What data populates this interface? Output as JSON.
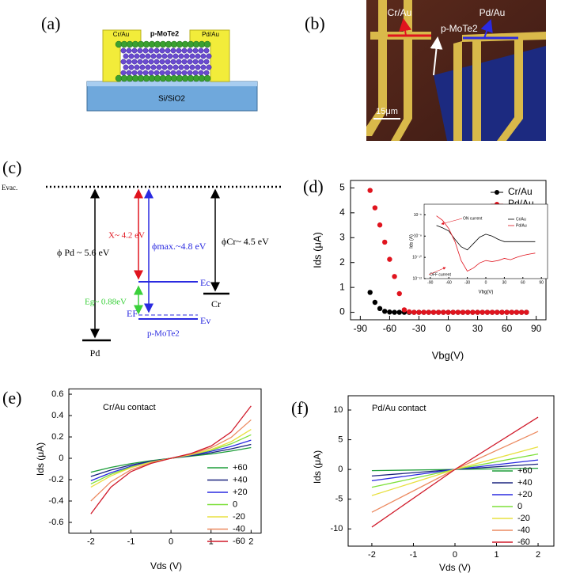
{
  "panel_labels": [
    "(a)",
    "(b)",
    "(c)",
    "(d)",
    "(e)",
    "(f)"
  ],
  "schematic": {
    "left_contact": "Cr/Au",
    "channel": "p-MoTe2",
    "right_contact": "Pd/Au",
    "substrate": "Si/SiO2"
  },
  "micrograph": {
    "left_contact": "Cr/Au",
    "channel": "p-MoTe2",
    "right_contact": "Pd/Au",
    "scale_bar": "15μm"
  },
  "band_diagram": {
    "vacuum": "Evac.",
    "phi_pd": "ϕ Pd ~ 5.6 eV",
    "chi": "X~ 4.2 eV",
    "phi_max": "ϕmax.~4.8 eV",
    "phi_cr": "ϕCr~ 4.5 eV",
    "ec": "Ec",
    "eg": "Eg~ 0.88eV",
    "ef": "EF",
    "ev": "Ev",
    "cr": "Cr",
    "pd": "Pd",
    "semiconductor": "p-MoTe2"
  },
  "chart_data": [
    {
      "type": "scatter",
      "xlabel": "Vbg(V)",
      "ylabel": "Ids (μA)",
      "x": [
        -80,
        -75,
        -70,
        -65,
        -60,
        -55,
        -50,
        -45,
        -40,
        -35,
        -30,
        -25,
        -20,
        -15,
        -10,
        -5,
        0,
        5,
        10,
        15,
        20,
        25,
        30,
        35,
        40,
        45,
        50,
        55,
        60,
        65,
        70,
        75,
        80
      ],
      "series": [
        {
          "name": "Cr/Au",
          "color": "#000000",
          "values": [
            0.8,
            0.4,
            0.15,
            0.04,
            0.01,
            0,
            0,
            0,
            0,
            0,
            0,
            0,
            0,
            0,
            0,
            0,
            0,
            0,
            0,
            0,
            0,
            0,
            0,
            0,
            0,
            0,
            0,
            0,
            0,
            0,
            0,
            0,
            0
          ]
        },
        {
          "name": "Pd/Au",
          "color": "#e0141e",
          "values": [
            4.9,
            4.2,
            3.51,
            2.82,
            2.13,
            1.44,
            0.75,
            0.1,
            0.02,
            0,
            0,
            0,
            0,
            0,
            0,
            0,
            0,
            0,
            0,
            0,
            0,
            0,
            0,
            0,
            0,
            0,
            0,
            0,
            0,
            0,
            0,
            0,
            0
          ]
        }
      ],
      "xlim": [
        -100,
        100
      ],
      "xticks": [
        -90,
        -60,
        -30,
        0,
        30,
        60,
        90
      ],
      "ylim": [
        -0.3,
        5.3
      ],
      "yticks": [
        0,
        1,
        2,
        3,
        4,
        5
      ],
      "legend": "upper right"
    },
    {
      "type": "line",
      "xlabel": "Vbg(V)",
      "ylabel": "Ids (A)",
      "log_y": true,
      "annotations": [
        "ON current",
        "OFF current"
      ],
      "x": [
        -80,
        -70,
        -60,
        -50,
        -40,
        -30,
        -20,
        -10,
        0,
        10,
        20,
        30,
        40,
        50,
        60,
        70,
        80
      ],
      "series": [
        {
          "name": "Cr/Au",
          "color": "#000000",
          "values": [
            1e-07,
            6e-08,
            3e-08,
            5e-09,
            1e-09,
            5e-10,
            2e-09,
            8e-09,
            1.5e-08,
            1e-08,
            5e-09,
            3e-09,
            3e-09,
            3e-09,
            3e-09,
            3e-09,
            3e-09
          ]
        },
        {
          "name": "Pd/Au",
          "color": "#e0141e",
          "values": [
            8e-07,
            3e-07,
            5e-08,
            3e-09,
            5e-11,
            5e-12,
            1e-11,
            3e-11,
            5e-11,
            4e-11,
            5e-11,
            8e-11,
            6e-11,
            1e-10,
            1.5e-10,
            2e-10,
            2.5e-10
          ]
        }
      ],
      "xlim": [
        -100,
        100
      ],
      "xticks": [
        -90,
        -60,
        -30,
        0,
        30,
        60,
        90
      ],
      "ylim": [
        1e-12,
        1e-05
      ],
      "yticks": [
        {
          "value": 1e-12,
          "label": "10⁻¹²"
        },
        {
          "value": 1e-10,
          "label": "10⁻¹⁰"
        },
        {
          "value": 1e-08,
          "label": "10⁻⁸"
        },
        {
          "value": 1e-06,
          "label": "10⁻⁶"
        }
      ],
      "legend": "upper right"
    },
    {
      "type": "line",
      "annotation": "Cr/Au contact",
      "xlabel": "Vds (V)",
      "ylabel": "Ids (μA)",
      "x": [
        -2,
        -1.5,
        -1,
        -0.5,
        0,
        0.5,
        1,
        1.5,
        2
      ],
      "series": [
        {
          "name": "+60",
          "color": "#1e9e3a",
          "values": [
            -0.13,
            -0.085,
            -0.05,
            -0.022,
            0,
            0.02,
            0.04,
            0.068,
            0.1
          ]
        },
        {
          "name": "+40",
          "color": "#1a237e",
          "values": [
            -0.17,
            -0.11,
            -0.063,
            -0.028,
            0,
            0.025,
            0.052,
            0.088,
            0.13
          ]
        },
        {
          "name": "+20",
          "color": "#2a2ae0",
          "values": [
            -0.21,
            -0.135,
            -0.075,
            -0.033,
            0,
            0.03,
            0.065,
            0.11,
            0.17
          ]
        },
        {
          "name": "0",
          "color": "#7ee03a",
          "values": [
            -0.24,
            -0.15,
            -0.082,
            -0.035,
            0,
            0.033,
            0.075,
            0.135,
            0.22
          ]
        },
        {
          "name": "-20",
          "color": "#e8e040",
          "values": [
            -0.27,
            -0.165,
            -0.088,
            -0.037,
            0,
            0.035,
            0.082,
            0.155,
            0.27
          ]
        },
        {
          "name": "-40",
          "color": "#ec8a60",
          "values": [
            -0.4,
            -0.22,
            -0.108,
            -0.043,
            0,
            0.04,
            0.098,
            0.195,
            0.36
          ]
        },
        {
          "name": "-60",
          "color": "#d01a2a",
          "values": [
            -0.52,
            -0.27,
            -0.125,
            -0.048,
            0,
            0.045,
            0.115,
            0.245,
            0.49
          ]
        }
      ],
      "xlim": [
        -2.55,
        2.25
      ],
      "xticks": [
        -2,
        -1,
        0,
        1,
        2
      ],
      "ylim": [
        -0.7,
        0.65
      ],
      "yticks": [
        -0.6,
        -0.4,
        -0.2,
        0.0,
        0.2,
        0.4,
        0.6
      ],
      "legend": "lower right"
    },
    {
      "type": "line",
      "annotation": "Pd/Au contact",
      "xlabel": "Vds (V)",
      "ylabel": "Ids (μA)",
      "x": [
        -2,
        0,
        2
      ],
      "series": [
        {
          "name": "+60",
          "color": "#1e9e3a",
          "values": [
            -0.2,
            0,
            0.2
          ]
        },
        {
          "name": "+40",
          "color": "#1a237e",
          "values": [
            -1.1,
            0,
            0.9
          ]
        },
        {
          "name": "+20",
          "color": "#2a2ae0",
          "values": [
            -1.9,
            0,
            1.6
          ]
        },
        {
          "name": "0",
          "color": "#7ee03a",
          "values": [
            -3,
            0,
            2.6
          ]
        },
        {
          "name": "-20",
          "color": "#e8e040",
          "values": [
            -4.4,
            0,
            3.8
          ]
        },
        {
          "name": "-40",
          "color": "#ec8a60",
          "values": [
            -7.2,
            0,
            6.4
          ]
        },
        {
          "name": "-60",
          "color": "#d01a2a",
          "values": [
            -9.7,
            0,
            8.8
          ]
        }
      ],
      "xlim": [
        -2.57,
        2.38
      ],
      "xticks": [
        -2,
        -1,
        0,
        1,
        2
      ],
      "ylim": [
        -12.9,
        12.4
      ],
      "yticks": [
        -10,
        -5,
        0,
        5,
        10
      ],
      "legend": "lower right"
    }
  ]
}
